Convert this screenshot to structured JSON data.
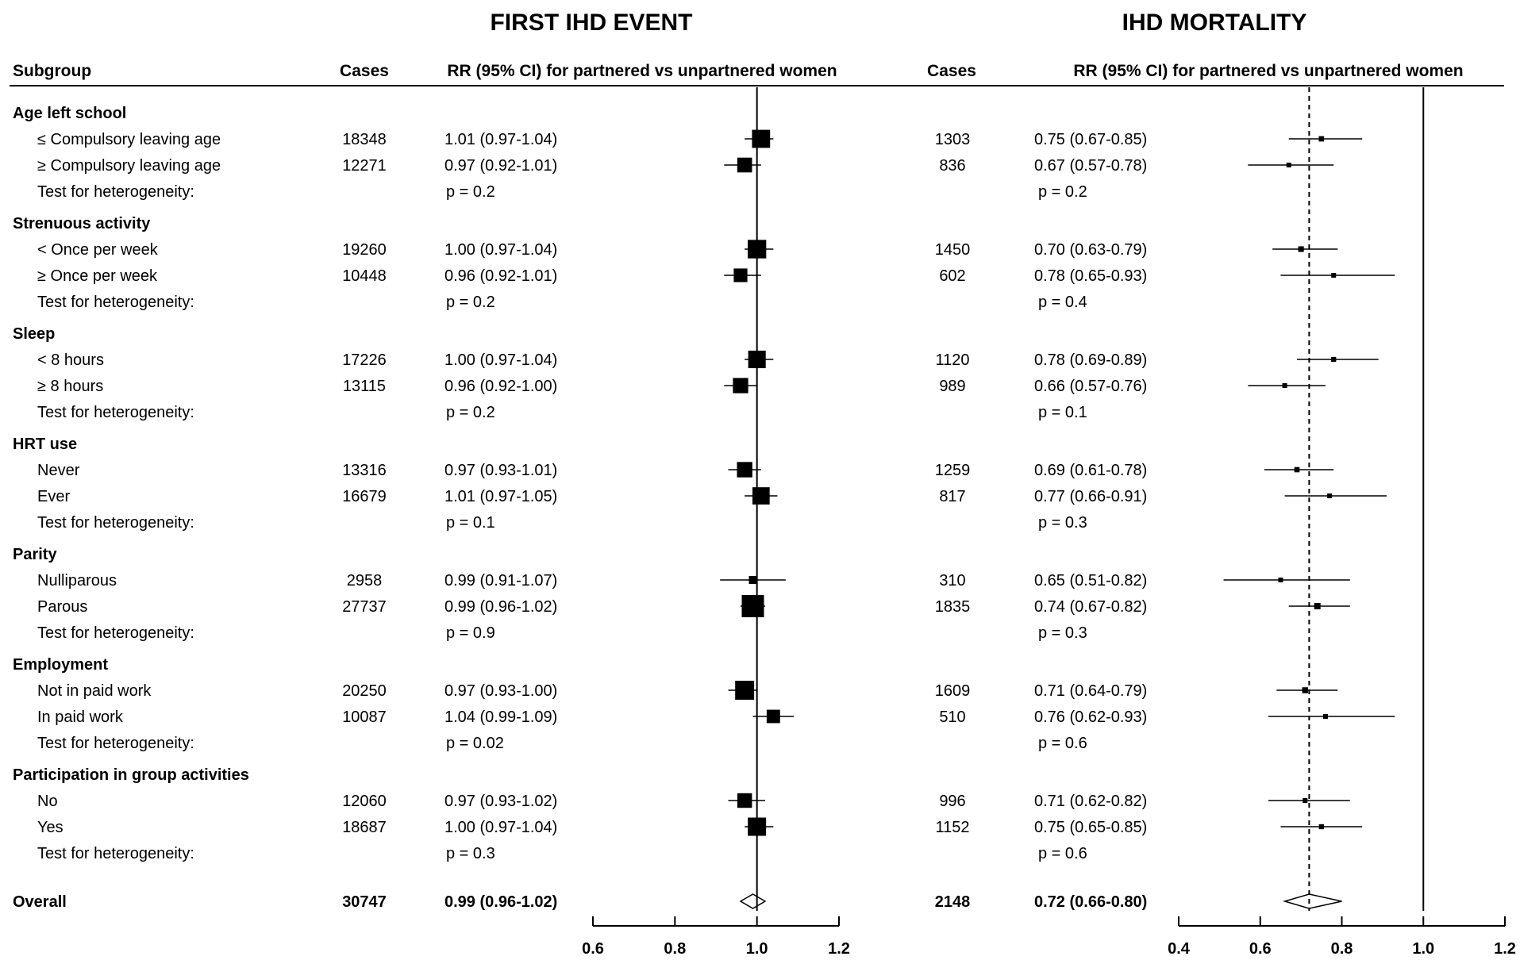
{
  "panels": {
    "left_title": "FIRST IHD EVENT",
    "right_title": "IHD MORTALITY"
  },
  "headers": {
    "subgroup": "Subgroup",
    "cases_left": "Cases",
    "rr_left": "RR (95% CI) for partnered vs unpartnered women",
    "cases_right": "Cases",
    "rr_right": "RR (95% CI) for partnered vs unpartnered women"
  },
  "chart_data": {
    "type": "forest",
    "x_left": {
      "ticks": [
        0.6,
        0.8,
        1.0,
        1.2
      ],
      "tick_labels": [
        "0.6",
        "0.8",
        "1.0",
        "1.2"
      ],
      "range": [
        0.6,
        1.2
      ],
      "reference": 1.0
    },
    "x_right": {
      "ticks": [
        0.4,
        0.6,
        0.8,
        1.0,
        1.2
      ],
      "tick_labels": [
        "0.4",
        "0.6",
        "0.8",
        "1.0",
        "1.2"
      ],
      "range": [
        0.4,
        1.2
      ],
      "reference": 1.0,
      "overall_dashed": 0.72
    },
    "groups": [
      {
        "name": "Age left school",
        "rows": [
          {
            "label": "≤ Compulsory leaving age",
            "cases_left": "18348",
            "rr_left": "1.01 (0.97-1.04)",
            "est_left": 1.01,
            "lo_left": 0.97,
            "hi_left": 1.04,
            "cases_right": "1303",
            "rr_right": "0.75 (0.67-0.85)",
            "est_right": 0.75,
            "lo_right": 0.67,
            "hi_right": 0.85
          },
          {
            "label": "≥ Compulsory leaving age",
            "cases_left": "12271",
            "rr_left": "0.97 (0.92-1.01)",
            "est_left": 0.97,
            "lo_left": 0.92,
            "hi_left": 1.01,
            "cases_right": "836",
            "rr_right": "0.67 (0.57-0.78)",
            "est_right": 0.67,
            "lo_right": 0.57,
            "hi_right": 0.78
          }
        ],
        "het_label": "Test for heterogeneity:",
        "p_left": "p = 0.2",
        "p_right": "p = 0.2"
      },
      {
        "name": "Strenuous activity",
        "rows": [
          {
            "label": "< Once per week",
            "cases_left": "19260",
            "rr_left": "1.00 (0.97-1.04)",
            "est_left": 1.0,
            "lo_left": 0.97,
            "hi_left": 1.04,
            "cases_right": "1450",
            "rr_right": "0.70 (0.63-0.79)",
            "est_right": 0.7,
            "lo_right": 0.63,
            "hi_right": 0.79
          },
          {
            "label": "≥ Once per week",
            "cases_left": "10448",
            "rr_left": "0.96 (0.92-1.01)",
            "est_left": 0.96,
            "lo_left": 0.92,
            "hi_left": 1.01,
            "cases_right": "602",
            "rr_right": "0.78 (0.65-0.93)",
            "est_right": 0.78,
            "lo_right": 0.65,
            "hi_right": 0.93
          }
        ],
        "het_label": "Test for heterogeneity:",
        "p_left": "p = 0.2",
        "p_right": "p = 0.4"
      },
      {
        "name": "Sleep",
        "rows": [
          {
            "label": "< 8 hours",
            "cases_left": "17226",
            "rr_left": "1.00 (0.97-1.04)",
            "est_left": 1.0,
            "lo_left": 0.97,
            "hi_left": 1.04,
            "cases_right": "1120",
            "rr_right": "0.78 (0.69-0.89)",
            "est_right": 0.78,
            "lo_right": 0.69,
            "hi_right": 0.89
          },
          {
            "label": "≥ 8 hours",
            "cases_left": "13115",
            "rr_left": "0.96 (0.92-1.00)",
            "est_left": 0.96,
            "lo_left": 0.92,
            "hi_left": 1.0,
            "cases_right": "989",
            "rr_right": "0.66 (0.57-0.76)",
            "est_right": 0.66,
            "lo_right": 0.57,
            "hi_right": 0.76
          }
        ],
        "het_label": "Test for heterogeneity:",
        "p_left": "p = 0.2",
        "p_right": "p = 0.1"
      },
      {
        "name": "HRT use",
        "rows": [
          {
            "label": "Never",
            "cases_left": "13316",
            "rr_left": "0.97 (0.93-1.01)",
            "est_left": 0.97,
            "lo_left": 0.93,
            "hi_left": 1.01,
            "cases_right": "1259",
            "rr_right": "0.69 (0.61-0.78)",
            "est_right": 0.69,
            "lo_right": 0.61,
            "hi_right": 0.78
          },
          {
            "label": "Ever",
            "cases_left": "16679",
            "rr_left": "1.01 (0.97-1.05)",
            "est_left": 1.01,
            "lo_left": 0.97,
            "hi_left": 1.05,
            "cases_right": "817",
            "rr_right": "0.77 (0.66-0.91)",
            "est_right": 0.77,
            "lo_right": 0.66,
            "hi_right": 0.91
          }
        ],
        "het_label": "Test for heterogeneity:",
        "p_left": "p = 0.1",
        "p_right": "p = 0.3"
      },
      {
        "name": "Parity",
        "rows": [
          {
            "label": "Nulliparous",
            "cases_left": "2958",
            "rr_left": "0.99 (0.91-1.07)",
            "est_left": 0.99,
            "lo_left": 0.91,
            "hi_left": 1.07,
            "cases_right": "310",
            "rr_right": "0.65 (0.51-0.82)",
            "est_right": 0.65,
            "lo_right": 0.51,
            "hi_right": 0.82
          },
          {
            "label": "Parous",
            "cases_left": "27737",
            "rr_left": "0.99 (0.96-1.02)",
            "est_left": 0.99,
            "lo_left": 0.96,
            "hi_left": 1.02,
            "cases_right": "1835",
            "rr_right": "0.74 (0.67-0.82)",
            "est_right": 0.74,
            "lo_right": 0.67,
            "hi_right": 0.82
          }
        ],
        "het_label": "Test for heterogeneity:",
        "p_left": "p = 0.9",
        "p_right": "p = 0.3"
      },
      {
        "name": "Employment",
        "rows": [
          {
            "label": "Not in paid work",
            "cases_left": "20250",
            "rr_left": "0.97 (0.93-1.00)",
            "est_left": 0.97,
            "lo_left": 0.93,
            "hi_left": 1.0,
            "cases_right": "1609",
            "rr_right": "0.71 (0.64-0.79)",
            "est_right": 0.71,
            "lo_right": 0.64,
            "hi_right": 0.79
          },
          {
            "label": "In paid work",
            "cases_left": "10087",
            "rr_left": "1.04 (0.99-1.09)",
            "est_left": 1.04,
            "lo_left": 0.99,
            "hi_left": 1.09,
            "cases_right": "510",
            "rr_right": "0.76 (0.62-0.93)",
            "est_right": 0.76,
            "lo_right": 0.62,
            "hi_right": 0.93
          }
        ],
        "het_label": "Test for heterogeneity:",
        "p_left": "p = 0.02",
        "p_right": "p = 0.6"
      },
      {
        "name": "Participation in group activities",
        "rows": [
          {
            "label": "No",
            "cases_left": "12060",
            "rr_left": "0.97 (0.93-1.02)",
            "est_left": 0.97,
            "lo_left": 0.93,
            "hi_left": 1.02,
            "cases_right": "996",
            "rr_right": "0.71 (0.62-0.82)",
            "est_right": 0.71,
            "lo_right": 0.62,
            "hi_right": 0.82
          },
          {
            "label": "Yes",
            "cases_left": "18687",
            "rr_left": "1.00 (0.97-1.04)",
            "est_left": 1.0,
            "lo_left": 0.97,
            "hi_left": 1.04,
            "cases_right": "1152",
            "rr_right": "0.75 (0.65-0.85)",
            "est_right": 0.75,
            "lo_right": 0.65,
            "hi_right": 0.85
          }
        ],
        "het_label": "Test for heterogeneity:",
        "p_left": "p = 0.3",
        "p_right": "p = 0.6"
      }
    ],
    "overall": {
      "label": "Overall",
      "cases_left": "30747",
      "rr_left": "0.99 (0.96-1.02)",
      "est_left": 0.99,
      "lo_left": 0.96,
      "hi_left": 1.02,
      "cases_right": "2148",
      "rr_right": "0.72 (0.66-0.80)",
      "est_right": 0.72,
      "lo_right": 0.66,
      "hi_right": 0.8
    }
  }
}
